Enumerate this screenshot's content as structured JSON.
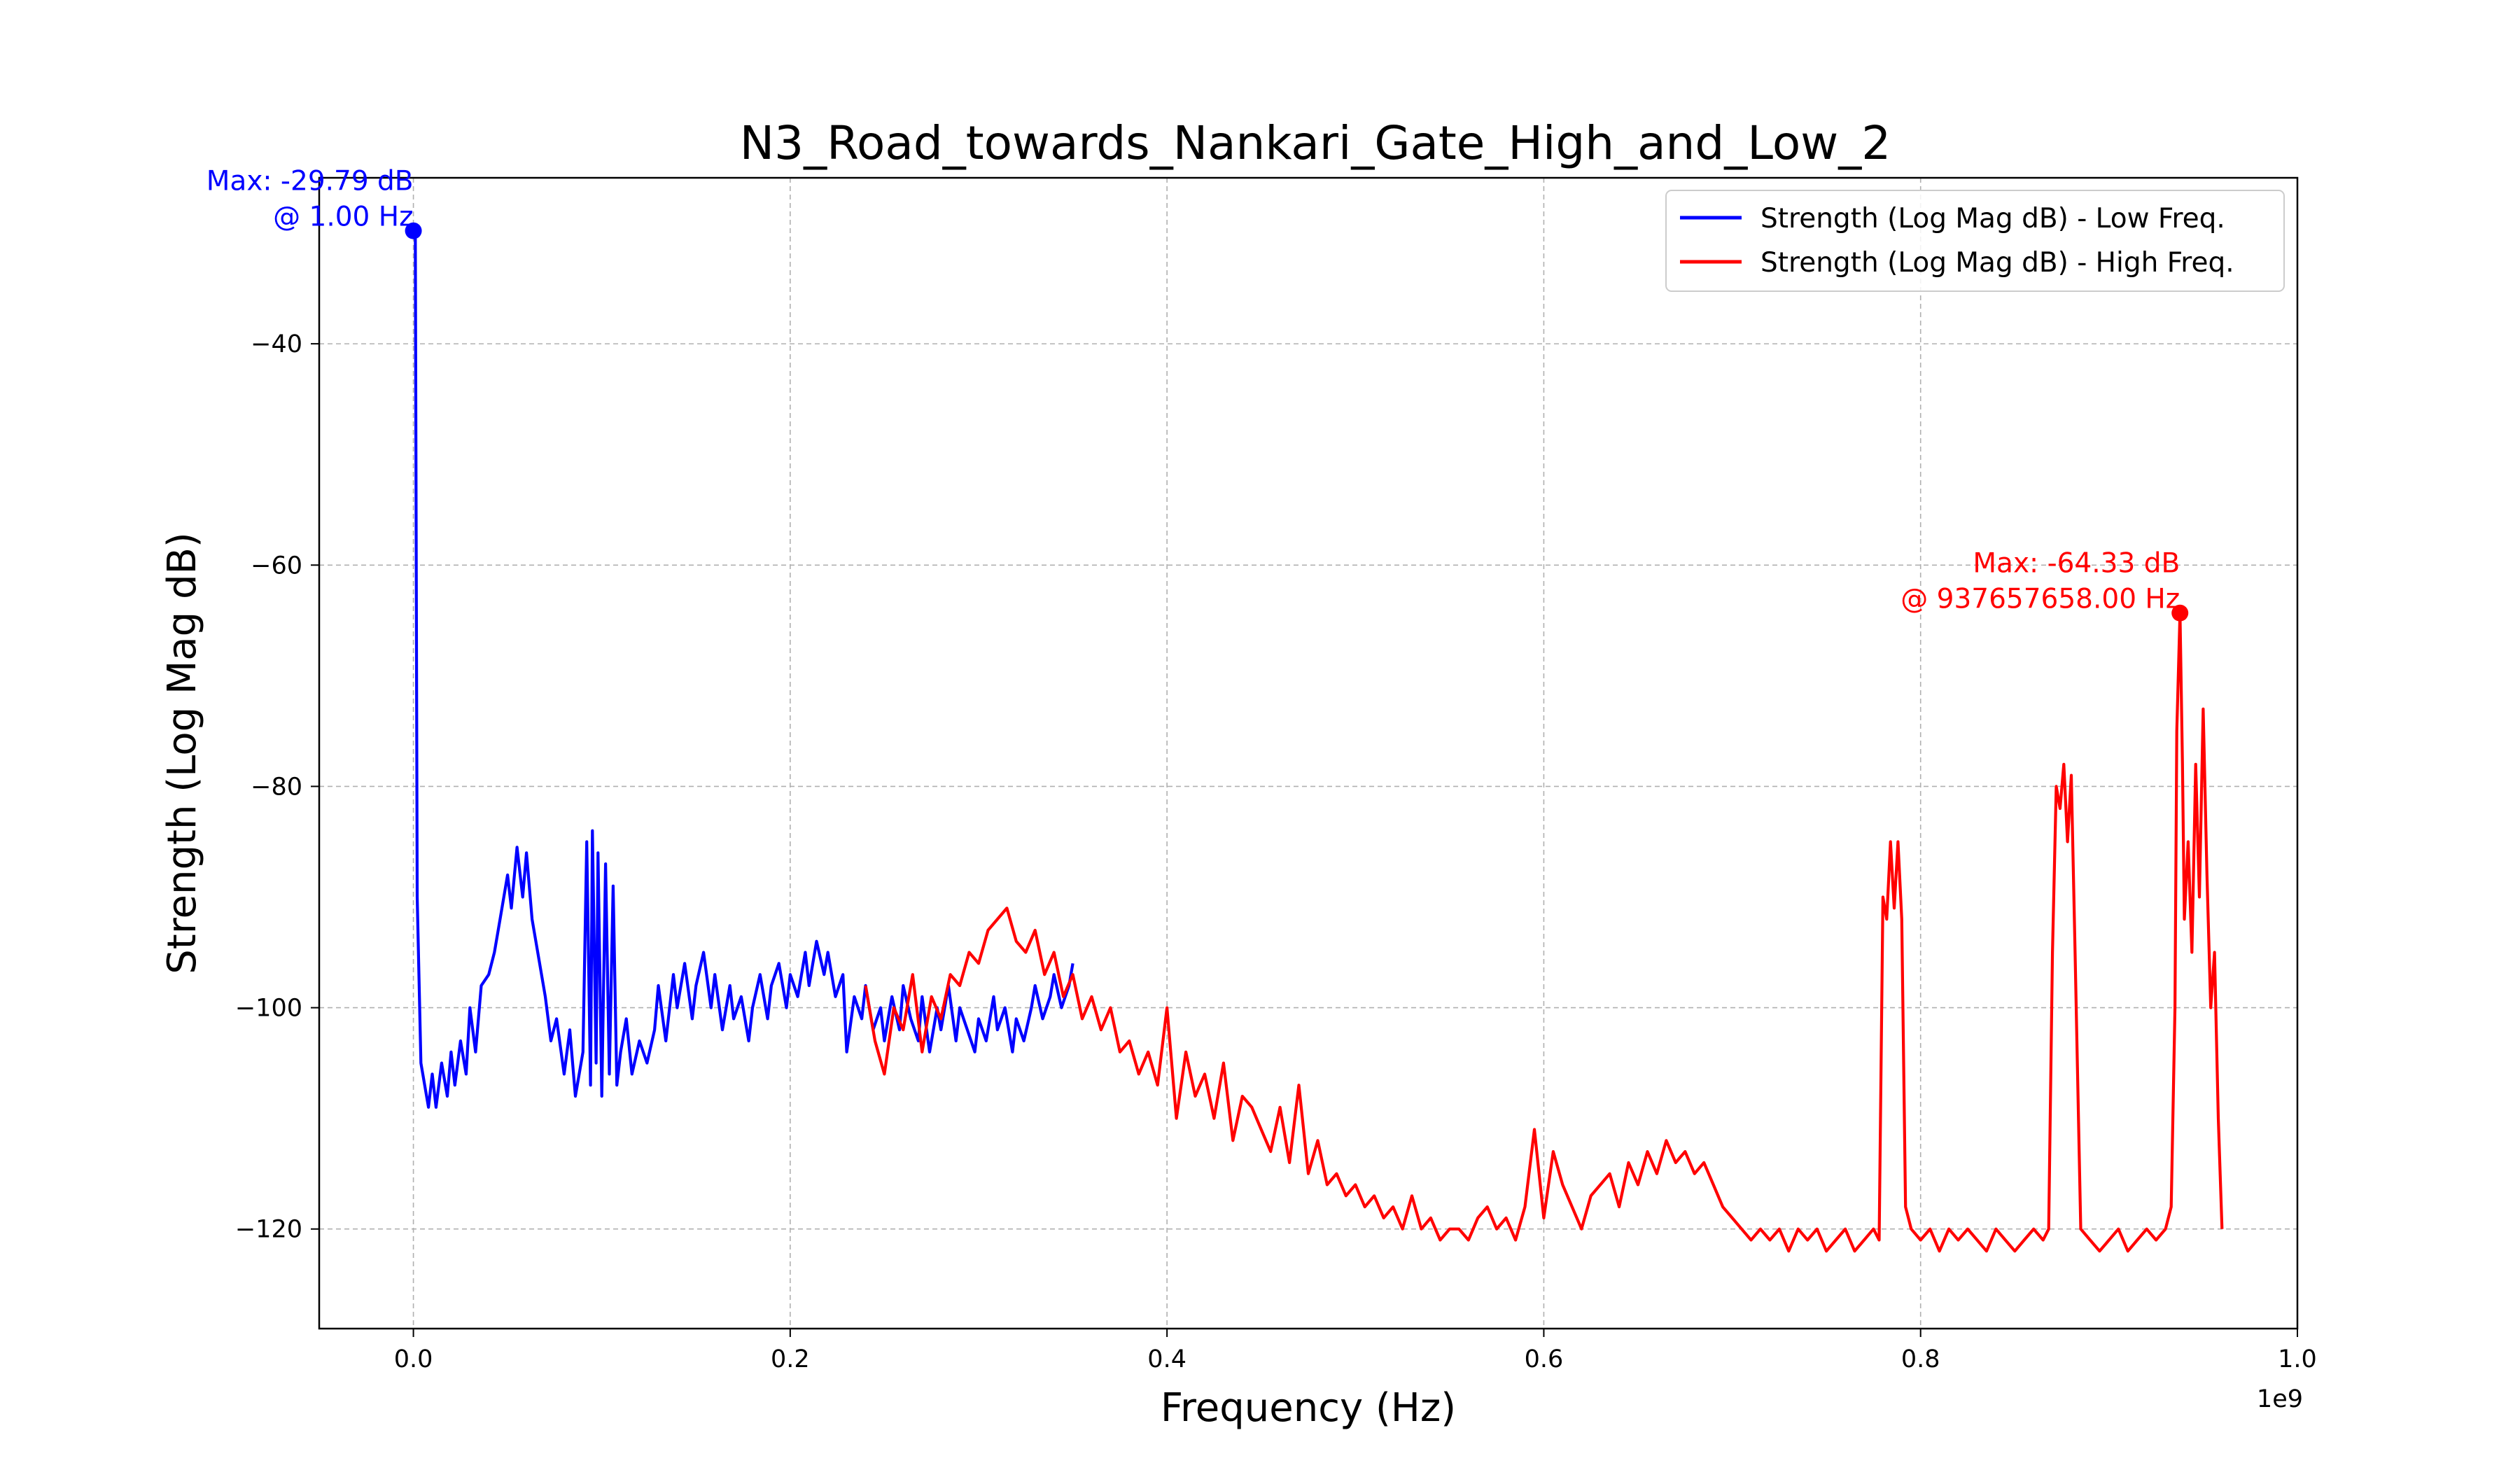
{
  "chart_data": {
    "type": "line",
    "title": "N3_Road_towards_Nankari_Gate_High_and_Low_2",
    "xlabel": "Frequency (Hz)",
    "ylabel": "Strength (Log Mag dB)",
    "x_offset_label": "1e9",
    "xlim": [
      -0.05,
      1.0
    ],
    "ylim": [
      -129,
      -25
    ],
    "x_ticks": [
      0.0,
      0.2,
      0.4,
      0.6,
      0.8,
      1.0
    ],
    "x_tick_labels": [
      "0.0",
      "0.2",
      "0.4",
      "0.6",
      "0.8",
      "1.0"
    ],
    "y_ticks": [
      -40,
      -60,
      -80,
      -100,
      -120
    ],
    "y_tick_labels": [
      "−40",
      "−60",
      "−80",
      "−100",
      "−120"
    ],
    "grid": true,
    "legend_position": "top-right",
    "series": [
      {
        "name": "Strength (Log Mag dB) - Low Freq.",
        "color": "#0000ff",
        "x": [
          0.0,
          0.001,
          0.002,
          0.004,
          0.006,
          0.008,
          0.01,
          0.012,
          0.015,
          0.018,
          0.02,
          0.022,
          0.025,
          0.028,
          0.03,
          0.033,
          0.036,
          0.04,
          0.043,
          0.046,
          0.05,
          0.052,
          0.055,
          0.058,
          0.06,
          0.063,
          0.066,
          0.07,
          0.073,
          0.076,
          0.08,
          0.083,
          0.086,
          0.09,
          0.092,
          0.094,
          0.095,
          0.097,
          0.098,
          0.1,
          0.102,
          0.104,
          0.106,
          0.108,
          0.11,
          0.113,
          0.116,
          0.12,
          0.124,
          0.128,
          0.13,
          0.134,
          0.138,
          0.14,
          0.144,
          0.148,
          0.15,
          0.154,
          0.158,
          0.16,
          0.164,
          0.168,
          0.17,
          0.174,
          0.178,
          0.18,
          0.184,
          0.188,
          0.19,
          0.194,
          0.198,
          0.2,
          0.204,
          0.208,
          0.21,
          0.214,
          0.218,
          0.22,
          0.224,
          0.228,
          0.23,
          0.234,
          0.238,
          0.24,
          0.244,
          0.248,
          0.25,
          0.254,
          0.258,
          0.26,
          0.264,
          0.268,
          0.27,
          0.274,
          0.278,
          0.28,
          0.284,
          0.288,
          0.29,
          0.294,
          0.298,
          0.3,
          0.304,
          0.308,
          0.31,
          0.314,
          0.318,
          0.32,
          0.324,
          0.328,
          0.33,
          0.334,
          0.338,
          0.34,
          0.344,
          0.348,
          0.35
        ],
        "y": [
          -29.79,
          -29.79,
          -90.0,
          -105.0,
          -107.0,
          -109.0,
          -106.0,
          -109.0,
          -105.0,
          -108.0,
          -104.0,
          -107.0,
          -103.0,
          -106.0,
          -100.0,
          -104.0,
          -98.0,
          -97.0,
          -95.0,
          -92.0,
          -88.0,
          -91.0,
          -85.5,
          -90.0,
          -86.0,
          -92.0,
          -95.0,
          -99.0,
          -103.0,
          -101.0,
          -106.0,
          -102.0,
          -108.0,
          -104.0,
          -85.0,
          -107.0,
          -84.0,
          -105.0,
          -86.0,
          -108.0,
          -87.0,
          -106.0,
          -89.0,
          -107.0,
          -104.0,
          -101.0,
          -106.0,
          -103.0,
          -105.0,
          -102.0,
          -98.0,
          -103.0,
          -97.0,
          -100.0,
          -96.0,
          -101.0,
          -98.0,
          -95.0,
          -100.0,
          -97.0,
          -102.0,
          -98.0,
          -101.0,
          -99.0,
          -103.0,
          -100.0,
          -97.0,
          -101.0,
          -98.0,
          -96.0,
          -100.0,
          -97.0,
          -99.0,
          -95.0,
          -98.0,
          -94.0,
          -97.0,
          -95.0,
          -99.0,
          -97.0,
          -104.0,
          -99.0,
          -101.0,
          -98.0,
          -102.0,
          -100.0,
          -103.0,
          -99.0,
          -102.0,
          -98.0,
          -101.0,
          -103.0,
          -99.0,
          -104.0,
          -100.0,
          -102.0,
          -98.0,
          -103.0,
          -100.0,
          -102.0,
          -104.0,
          -101.0,
          -103.0,
          -99.0,
          -102.0,
          -100.0,
          -104.0,
          -101.0,
          -103.0,
          -100.0,
          -98.0,
          -101.0,
          -99.0,
          -97.0,
          -100.0,
          -98.0,
          -96.0
        ]
      },
      {
        "name": "Strength (Log Mag dB) - High Freq.",
        "color": "#ff0000",
        "x": [
          0.24,
          0.245,
          0.25,
          0.255,
          0.26,
          0.265,
          0.27,
          0.275,
          0.28,
          0.285,
          0.29,
          0.295,
          0.3,
          0.305,
          0.31,
          0.315,
          0.32,
          0.325,
          0.33,
          0.335,
          0.34,
          0.345,
          0.35,
          0.355,
          0.36,
          0.365,
          0.37,
          0.375,
          0.38,
          0.385,
          0.39,
          0.395,
          0.4,
          0.405,
          0.41,
          0.415,
          0.42,
          0.425,
          0.43,
          0.435,
          0.44,
          0.445,
          0.45,
          0.455,
          0.46,
          0.465,
          0.47,
          0.475,
          0.48,
          0.485,
          0.49,
          0.495,
          0.5,
          0.505,
          0.51,
          0.515,
          0.52,
          0.525,
          0.53,
          0.535,
          0.54,
          0.545,
          0.55,
          0.555,
          0.56,
          0.565,
          0.57,
          0.575,
          0.58,
          0.585,
          0.59,
          0.595,
          0.6,
          0.605,
          0.61,
          0.615,
          0.62,
          0.625,
          0.63,
          0.635,
          0.64,
          0.645,
          0.65,
          0.655,
          0.66,
          0.665,
          0.67,
          0.675,
          0.68,
          0.685,
          0.69,
          0.695,
          0.7,
          0.705,
          0.71,
          0.715,
          0.72,
          0.725,
          0.73,
          0.735,
          0.74,
          0.745,
          0.75,
          0.755,
          0.76,
          0.765,
          0.77,
          0.775,
          0.778,
          0.78,
          0.782,
          0.784,
          0.786,
          0.788,
          0.79,
          0.792,
          0.795,
          0.8,
          0.805,
          0.81,
          0.815,
          0.82,
          0.825,
          0.83,
          0.835,
          0.84,
          0.845,
          0.85,
          0.855,
          0.86,
          0.865,
          0.868,
          0.87,
          0.872,
          0.874,
          0.876,
          0.878,
          0.88,
          0.882,
          0.885,
          0.89,
          0.895,
          0.9,
          0.905,
          0.91,
          0.915,
          0.92,
          0.925,
          0.93,
          0.933,
          0.935,
          0.936,
          0.9377,
          0.939,
          0.94,
          0.942,
          0.944,
          0.946,
          0.948,
          0.95,
          0.952,
          0.954,
          0.956,
          0.958,
          0.96
        ],
        "y": [
          -98.0,
          -103.0,
          -106.0,
          -100.0,
          -102.0,
          -97.0,
          -104.0,
          -99.0,
          -101.0,
          -97.0,
          -98.0,
          -95.0,
          -96.0,
          -93.0,
          -92.0,
          -91.0,
          -94.0,
          -95.0,
          -93.0,
          -97.0,
          -95.0,
          -99.0,
          -97.0,
          -101.0,
          -99.0,
          -102.0,
          -100.0,
          -104.0,
          -103.0,
          -106.0,
          -104.0,
          -107.0,
          -100.0,
          -110.0,
          -104.0,
          -108.0,
          -106.0,
          -110.0,
          -105.0,
          -112.0,
          -108.0,
          -109.0,
          -111.0,
          -113.0,
          -109.0,
          -114.0,
          -107.0,
          -115.0,
          -112.0,
          -116.0,
          -115.0,
          -117.0,
          -116.0,
          -118.0,
          -117.0,
          -119.0,
          -118.0,
          -120.0,
          -117.0,
          -120.0,
          -119.0,
          -121.0,
          -120.0,
          -120.0,
          -121.0,
          -119.0,
          -118.0,
          -120.0,
          -119.0,
          -121.0,
          -118.0,
          -111.0,
          -119.0,
          -113.0,
          -116.0,
          -118.0,
          -120.0,
          -117.0,
          -116.0,
          -115.0,
          -118.0,
          -114.0,
          -116.0,
          -113.0,
          -115.0,
          -112.0,
          -114.0,
          -113.0,
          -115.0,
          -114.0,
          -116.0,
          -118.0,
          -119.0,
          -120.0,
          -121.0,
          -120.0,
          -121.0,
          -120.0,
          -122.0,
          -120.0,
          -121.0,
          -120.0,
          -122.0,
          -121.0,
          -120.0,
          -122.0,
          -121.0,
          -120.0,
          -121.0,
          -90.0,
          -92.0,
          -85.0,
          -91.0,
          -85.0,
          -92.0,
          -118.0,
          -120.0,
          -121.0,
          -120.0,
          -122.0,
          -120.0,
          -121.0,
          -120.0,
          -121.0,
          -122.0,
          -120.0,
          -121.0,
          -122.0,
          -121.0,
          -120.0,
          -121.0,
          -120.0,
          -95.0,
          -80.0,
          -82.0,
          -78.0,
          -85.0,
          -79.0,
          -95.0,
          -120.0,
          -121.0,
          -122.0,
          -121.0,
          -120.0,
          -122.0,
          -121.0,
          -120.0,
          -121.0,
          -120.0,
          -118.0,
          -100.0,
          -75.0,
          -64.33,
          -78.0,
          -92.0,
          -85.0,
          -95.0,
          -78.0,
          -90.0,
          -73.0,
          -88.0,
          -100.0,
          -95.0,
          -110.0,
          -120.0
        ]
      }
    ],
    "annotations": [
      {
        "lines": [
          "Max: -29.79 dB",
          "@ 1.00 Hz"
        ],
        "x": 0.0,
        "y": -29.79,
        "color": "#0000ff"
      },
      {
        "lines": [
          "Max: -64.33 dB",
          "@ 937657658.00 Hz"
        ],
        "x": 0.937657658,
        "y": -64.33,
        "color": "#ff0000"
      }
    ]
  }
}
